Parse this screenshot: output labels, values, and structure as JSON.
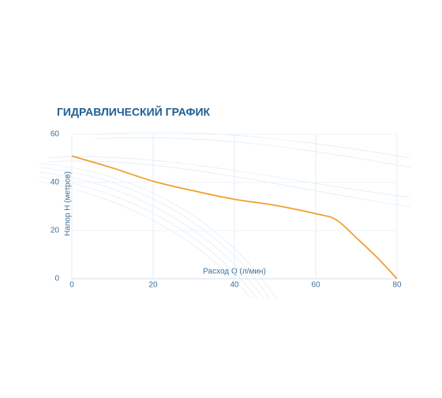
{
  "chart_data": {
    "type": "line",
    "title": "ГИДРАВЛИЧЕСКИЙ ГРАФИК",
    "x_label": "Расход Q (л/мин)",
    "y_label": "Напор Н (метров)",
    "x": [
      0,
      10,
      20,
      30,
      40,
      50,
      60,
      65,
      70,
      75,
      80
    ],
    "series": [
      {
        "name": "Напор",
        "color": "#f0a030",
        "values": [
          51,
          46,
          40.5,
          36.5,
          33,
          30.5,
          27,
          24.5,
          17,
          9,
          0
        ]
      }
    ],
    "xlim": [
      0,
      80
    ],
    "xticks": [
      0,
      20,
      40,
      60,
      80
    ],
    "ylim": [
      0,
      60
    ],
    "yticks": [
      0,
      20,
      40,
      60
    ],
    "grid": true
  }
}
